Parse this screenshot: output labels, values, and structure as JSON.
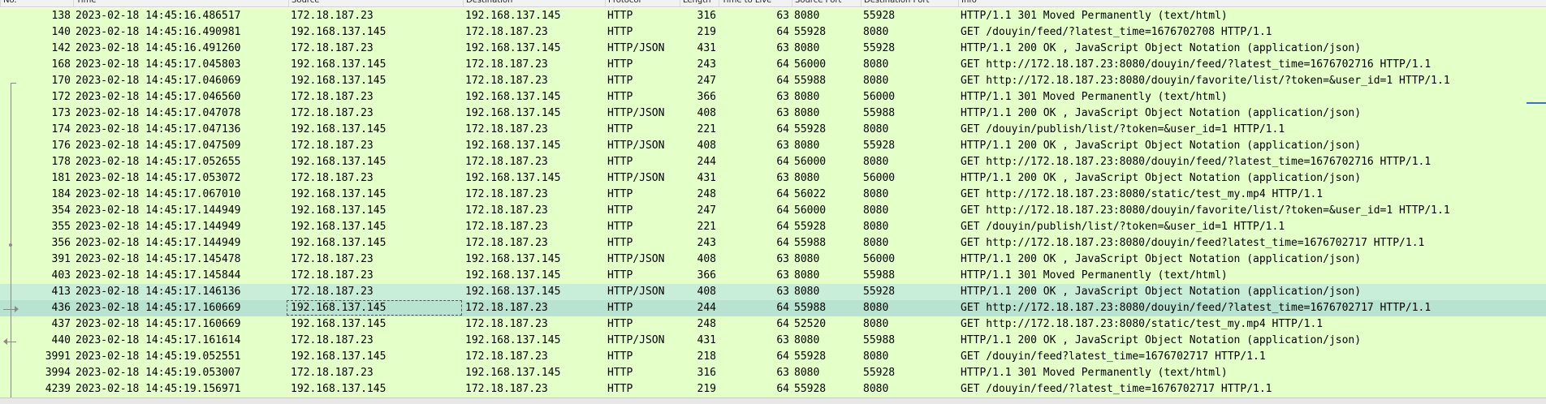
{
  "colors": {
    "row_green": "#e4ffc7",
    "row_selected_related": "#c8eed9",
    "row_selected": "#b7e3d0",
    "header_bg": "#f2f2f2",
    "scroll_marker": "#3b6fd8"
  },
  "columns": [
    "No.",
    "Time",
    "Source",
    "Destination",
    "Protocol",
    "Length",
    "Time to Live",
    "Source Port",
    "Destination Port",
    "Info"
  ],
  "rows": [
    {
      "no": "138",
      "time": "2023-02-18 14:45:16.486517",
      "src": "172.18.187.23",
      "dst": "192.168.137.145",
      "proto": "HTTP",
      "len": "316",
      "ttl": "63",
      "sport": "8080",
      "dport": "55928",
      "info": "HTTP/1.1 301 Moved Permanently  (text/html)",
      "state": "normal"
    },
    {
      "no": "140",
      "time": "2023-02-18 14:45:16.490981",
      "src": "192.168.137.145",
      "dst": "172.18.187.23",
      "proto": "HTTP",
      "len": "219",
      "ttl": "64",
      "sport": "55928",
      "dport": "8080",
      "info": "GET /douyin/feed/?latest_time=1676702708 HTTP/1.1",
      "state": "normal"
    },
    {
      "no": "142",
      "time": "2023-02-18 14:45:16.491260",
      "src": "172.18.187.23",
      "dst": "192.168.137.145",
      "proto": "HTTP/JSON",
      "len": "431",
      "ttl": "63",
      "sport": "8080",
      "dport": "55928",
      "info": "HTTP/1.1 200 OK , JavaScript Object Notation (application/json)",
      "state": "normal"
    },
    {
      "no": "168",
      "time": "2023-02-18 14:45:17.045803",
      "src": "192.168.137.145",
      "dst": "172.18.187.23",
      "proto": "HTTP",
      "len": "243",
      "ttl": "64",
      "sport": "56000",
      "dport": "8080",
      "info": "GET http://172.18.187.23:8080/douyin/feed/?latest_time=1676702716 HTTP/1.1",
      "state": "normal"
    },
    {
      "no": "170",
      "time": "2023-02-18 14:45:17.046069",
      "src": "192.168.137.145",
      "dst": "172.18.187.23",
      "proto": "HTTP",
      "len": "247",
      "ttl": "64",
      "sport": "55988",
      "dport": "8080",
      "info": "GET http://172.18.187.23:8080/douyin/favorite/list/?token=&user_id=1 HTTP/1.1",
      "state": "normal"
    },
    {
      "no": "172",
      "time": "2023-02-18 14:45:17.046560",
      "src": "172.18.187.23",
      "dst": "192.168.137.145",
      "proto": "HTTP",
      "len": "366",
      "ttl": "63",
      "sport": "8080",
      "dport": "56000",
      "info": "HTTP/1.1 301 Moved Permanently  (text/html)",
      "state": "normal"
    },
    {
      "no": "173",
      "time": "2023-02-18 14:45:17.047078",
      "src": "172.18.187.23",
      "dst": "192.168.137.145",
      "proto": "HTTP/JSON",
      "len": "408",
      "ttl": "63",
      "sport": "8080",
      "dport": "55988",
      "info": "HTTP/1.1 200 OK , JavaScript Object Notation (application/json)",
      "state": "normal"
    },
    {
      "no": "174",
      "time": "2023-02-18 14:45:17.047136",
      "src": "192.168.137.145",
      "dst": "172.18.187.23",
      "proto": "HTTP",
      "len": "221",
      "ttl": "64",
      "sport": "55928",
      "dport": "8080",
      "info": "GET /douyin/publish/list/?token=&user_id=1 HTTP/1.1",
      "state": "normal"
    },
    {
      "no": "176",
      "time": "2023-02-18 14:45:17.047509",
      "src": "172.18.187.23",
      "dst": "192.168.137.145",
      "proto": "HTTP/JSON",
      "len": "408",
      "ttl": "63",
      "sport": "8080",
      "dport": "55928",
      "info": "HTTP/1.1 200 OK , JavaScript Object Notation (application/json)",
      "state": "normal"
    },
    {
      "no": "178",
      "time": "2023-02-18 14:45:17.052655",
      "src": "192.168.137.145",
      "dst": "172.18.187.23",
      "proto": "HTTP",
      "len": "244",
      "ttl": "64",
      "sport": "56000",
      "dport": "8080",
      "info": "GET http://172.18.187.23:8080/douyin/feed/?latest_time=1676702716 HTTP/1.1",
      "state": "normal"
    },
    {
      "no": "181",
      "time": "2023-02-18 14:45:17.053072",
      "src": "172.18.187.23",
      "dst": "192.168.137.145",
      "proto": "HTTP/JSON",
      "len": "431",
      "ttl": "63",
      "sport": "8080",
      "dport": "56000",
      "info": "HTTP/1.1 200 OK , JavaScript Object Notation (application/json)",
      "state": "normal"
    },
    {
      "no": "184",
      "time": "2023-02-18 14:45:17.067010",
      "src": "192.168.137.145",
      "dst": "172.18.187.23",
      "proto": "HTTP",
      "len": "248",
      "ttl": "64",
      "sport": "56022",
      "dport": "8080",
      "info": "GET http://172.18.187.23:8080/static/test_my.mp4 HTTP/1.1",
      "state": "normal"
    },
    {
      "no": "354",
      "time": "2023-02-18 14:45:17.144949",
      "src": "192.168.137.145",
      "dst": "172.18.187.23",
      "proto": "HTTP",
      "len": "247",
      "ttl": "64",
      "sport": "56000",
      "dport": "8080",
      "info": "GET http://172.18.187.23:8080/douyin/favorite/list/?token=&user_id=1 HTTP/1.1",
      "state": "normal"
    },
    {
      "no": "355",
      "time": "2023-02-18 14:45:17.144949",
      "src": "192.168.137.145",
      "dst": "172.18.187.23",
      "proto": "HTTP",
      "len": "221",
      "ttl": "64",
      "sport": "55928",
      "dport": "8080",
      "info": "GET /douyin/publish/list/?token=&user_id=1 HTTP/1.1",
      "state": "normal"
    },
    {
      "no": "356",
      "time": "2023-02-18 14:45:17.144949",
      "src": "192.168.137.145",
      "dst": "172.18.187.23",
      "proto": "HTTP",
      "len": "243",
      "ttl": "64",
      "sport": "55988",
      "dport": "8080",
      "info": "GET http://172.18.187.23:8080/douyin/feed?latest_time=1676702717 HTTP/1.1",
      "state": "normal"
    },
    {
      "no": "391",
      "time": "2023-02-18 14:45:17.145478",
      "src": "172.18.187.23",
      "dst": "192.168.137.145",
      "proto": "HTTP/JSON",
      "len": "408",
      "ttl": "63",
      "sport": "8080",
      "dport": "56000",
      "info": "HTTP/1.1 200 OK , JavaScript Object Notation (application/json)",
      "state": "normal"
    },
    {
      "no": "403",
      "time": "2023-02-18 14:45:17.145844",
      "src": "172.18.187.23",
      "dst": "192.168.137.145",
      "proto": "HTTP",
      "len": "366",
      "ttl": "63",
      "sport": "8080",
      "dport": "55988",
      "info": "HTTP/1.1 301 Moved Permanently  (text/html)",
      "state": "normal"
    },
    {
      "no": "413",
      "time": "2023-02-18 14:45:17.146136",
      "src": "172.18.187.23",
      "dst": "192.168.137.145",
      "proto": "HTTP/JSON",
      "len": "408",
      "ttl": "63",
      "sport": "8080",
      "dport": "55928",
      "info": "HTTP/1.1 200 OK , JavaScript Object Notation (application/json)",
      "state": "related"
    },
    {
      "no": "436",
      "time": "2023-02-18 14:45:17.160669",
      "src": "192.168.137.145",
      "dst": "172.18.187.23",
      "proto": "HTTP",
      "len": "244",
      "ttl": "64",
      "sport": "55988",
      "dport": "8080",
      "info": "GET http://172.18.187.23:8080/douyin/feed/?latest_time=1676702717 HTTP/1.1",
      "state": "selected"
    },
    {
      "no": "437",
      "time": "2023-02-18 14:45:17.160669",
      "src": "192.168.137.145",
      "dst": "172.18.187.23",
      "proto": "HTTP",
      "len": "248",
      "ttl": "64",
      "sport": "52520",
      "dport": "8080",
      "info": "GET http://172.18.187.23:8080/static/test_my.mp4 HTTP/1.1",
      "state": "normal"
    },
    {
      "no": "440",
      "time": "2023-02-18 14:45:17.161614",
      "src": "172.18.187.23",
      "dst": "192.168.137.145",
      "proto": "HTTP/JSON",
      "len": "431",
      "ttl": "63",
      "sport": "8080",
      "dport": "55988",
      "info": "HTTP/1.1 200 OK , JavaScript Object Notation (application/json)",
      "state": "normal"
    },
    {
      "no": "3991",
      "time": "2023-02-18 14:45:19.052551",
      "src": "192.168.137.145",
      "dst": "172.18.187.23",
      "proto": "HTTP",
      "len": "218",
      "ttl": "64",
      "sport": "55928",
      "dport": "8080",
      "info": "GET /douyin/feed?latest_time=1676702717 HTTP/1.1",
      "state": "normal"
    },
    {
      "no": "3994",
      "time": "2023-02-18 14:45:19.053007",
      "src": "172.18.187.23",
      "dst": "192.168.137.145",
      "proto": "HTTP",
      "len": "316",
      "ttl": "63",
      "sport": "8080",
      "dport": "55928",
      "info": "HTTP/1.1 301 Moved Permanently  (text/html)",
      "state": "normal"
    },
    {
      "no": "4239",
      "time": "2023-02-18 14:45:19.156971",
      "src": "192.168.137.145",
      "dst": "172.18.187.23",
      "proto": "HTTP",
      "len": "219",
      "ttl": "64",
      "sport": "55928",
      "dport": "8080",
      "info": "GET /douyin/feed/?latest_time=1676702717 HTTP/1.1",
      "state": "normal"
    }
  ]
}
